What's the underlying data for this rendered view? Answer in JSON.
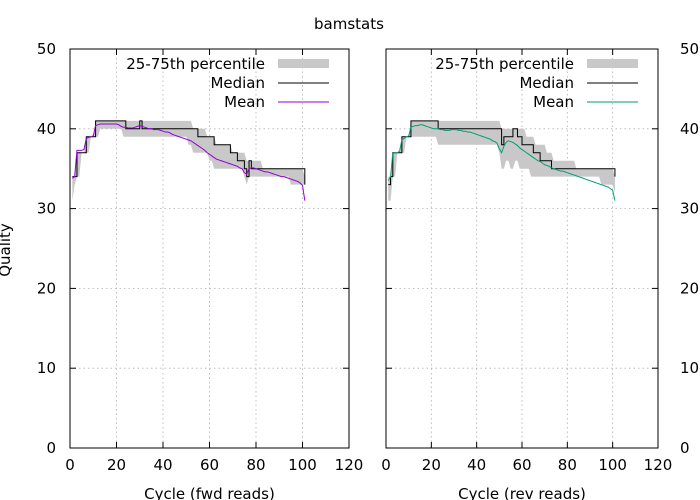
{
  "figure": {
    "title": "bamstats",
    "ylabel": "Quality"
  },
  "colors": {
    "iqr_band": "#c8c8c8",
    "median": "#000000",
    "fwd_mean": "#9400d3",
    "rev_mean": "#009e73",
    "grid": "#b0b0b0",
    "axis": "#000000",
    "text": "#000000"
  },
  "chart_data": [
    {
      "type": "line",
      "panel": "forward",
      "xlabel": "Cycle (fwd reads)",
      "xlim": [
        0,
        120
      ],
      "ylim": [
        0,
        50
      ],
      "xticks": [
        0,
        20,
        40,
        60,
        80,
        100,
        120
      ],
      "yticks": [
        0,
        10,
        20,
        30,
        40,
        50
      ],
      "grid": true,
      "legend": "top-right",
      "legend_entries": [
        "25-75th percentile",
        "Median",
        "Mean"
      ],
      "x": [
        1,
        2,
        3,
        4,
        5,
        6,
        7,
        8,
        9,
        10,
        11,
        12,
        13,
        14,
        15,
        16,
        17,
        18,
        19,
        20,
        21,
        22,
        23,
        24,
        25,
        26,
        27,
        28,
        29,
        30,
        31,
        32,
        33,
        34,
        35,
        36,
        37,
        38,
        39,
        40,
        41,
        42,
        43,
        44,
        45,
        46,
        47,
        48,
        49,
        50,
        51,
        52,
        53,
        54,
        55,
        56,
        57,
        58,
        59,
        60,
        61,
        62,
        63,
        64,
        65,
        66,
        67,
        68,
        69,
        70,
        71,
        72,
        73,
        74,
        75,
        76,
        77,
        78,
        79,
        80,
        81,
        82,
        83,
        84,
        85,
        86,
        87,
        88,
        89,
        90,
        91,
        92,
        93,
        94,
        95,
        96,
        97,
        98,
        99,
        100,
        101
      ],
      "q25": [
        31,
        33,
        34,
        34,
        37,
        37,
        37,
        37,
        39,
        39,
        39,
        39,
        40,
        40,
        40,
        40,
        40,
        40,
        40,
        40,
        40,
        40,
        39,
        39,
        39,
        39,
        39,
        39,
        39,
        39,
        39,
        39,
        39,
        39,
        39,
        39,
        39,
        39,
        39,
        39,
        39,
        39,
        39,
        39,
        39,
        39,
        39,
        39,
        39,
        39,
        38,
        38,
        37,
        37,
        37,
        37,
        37,
        37,
        37,
        36,
        36,
        35,
        35,
        35,
        35,
        35,
        35,
        35,
        35,
        35,
        35,
        35,
        35,
        35,
        34,
        33,
        34,
        34,
        34,
        34,
        34,
        34,
        34,
        34,
        34,
        34,
        34,
        34,
        34,
        34,
        34,
        34,
        34,
        34,
        33,
        33,
        33,
        33,
        33,
        33,
        33
      ],
      "q75": [
        34,
        34,
        37,
        37,
        37,
        37,
        39,
        39,
        39,
        39,
        41,
        41,
        41,
        41,
        41,
        41,
        41,
        41,
        41,
        41,
        41,
        41,
        41,
        41,
        41,
        41,
        41,
        41,
        41,
        41,
        41,
        41,
        41,
        41,
        41,
        41,
        41,
        41,
        41,
        41,
        41,
        41,
        41,
        41,
        41,
        41,
        41,
        41,
        41,
        41,
        41,
        41,
        40,
        40,
        40,
        40,
        40,
        40,
        39,
        39,
        39,
        39,
        38,
        38,
        38,
        38,
        38,
        38,
        38,
        37,
        37,
        37,
        37,
        37,
        37,
        36,
        36,
        36,
        36,
        36,
        36,
        36,
        35,
        35,
        35,
        35,
        35,
        35,
        35,
        35,
        35,
        35,
        35,
        35,
        35,
        35,
        35,
        35,
        35,
        35,
        34
      ],
      "series": [
        {
          "name": "Median",
          "values": [
            34,
            34,
            37,
            37,
            37,
            37,
            39,
            39,
            39,
            39,
            41,
            41,
            41,
            41,
            41,
            41,
            41,
            41,
            41,
            41,
            41,
            41,
            41,
            40,
            40,
            40,
            40,
            40,
            40,
            41,
            40,
            40,
            40,
            40,
            40,
            40,
            40,
            40,
            40,
            40,
            40,
            40,
            40,
            40,
            40,
            40,
            40,
            40,
            40,
            40,
            40,
            40,
            40,
            40,
            39,
            39,
            39,
            39,
            39,
            39,
            39,
            38,
            38,
            38,
            38,
            38,
            38,
            38,
            37,
            37,
            37,
            36,
            36,
            36,
            35,
            34,
            36,
            35,
            35,
            35,
            35,
            35,
            35,
            35,
            35,
            35,
            35,
            35,
            35,
            35,
            35,
            35,
            35,
            35,
            35,
            35,
            35,
            35,
            35,
            35,
            33
          ]
        },
        {
          "name": "Mean",
          "values": [
            33.8,
            34,
            37.3,
            37.3,
            37.3,
            37.4,
            38.8,
            38.9,
            39,
            39.1,
            40.4,
            40.5,
            40.6,
            40.6,
            40.6,
            40.6,
            40.6,
            40.6,
            40.6,
            40.6,
            40.5,
            40.3,
            40.2,
            40.2,
            40.1,
            40.1,
            40.1,
            40.2,
            40.3,
            40.4,
            40.3,
            40.2,
            40.1,
            40,
            40,
            39.9,
            39.9,
            39.9,
            39.8,
            39.7,
            39.6,
            39.6,
            39.5,
            39.3,
            39.2,
            39.1,
            39,
            38.9,
            38.8,
            38.7,
            38.6,
            38.5,
            38.3,
            38.1,
            37.9,
            37.7,
            37.5,
            37.3,
            37,
            36.8,
            36.6,
            36.4,
            36.2,
            36.1,
            36,
            35.9,
            35.8,
            35.7,
            35.6,
            35.5,
            35.4,
            35.3,
            35.1,
            35,
            34.5,
            34.3,
            35,
            35.1,
            35.1,
            35,
            34.9,
            34.8,
            34.7,
            34.6,
            34.6,
            34.5,
            34.4,
            34.3,
            34.2,
            34.1,
            34,
            34,
            33.9,
            33.8,
            33.7,
            33.6,
            33.5,
            33.4,
            33.2,
            32.9,
            31
          ]
        }
      ]
    },
    {
      "type": "line",
      "panel": "reverse",
      "xlabel": "Cycle (rev reads)",
      "xlim": [
        0,
        120
      ],
      "ylim": [
        0,
        50
      ],
      "xticks": [
        0,
        20,
        40,
        60,
        80,
        100,
        120
      ],
      "yticks": [
        0,
        10,
        20,
        30,
        40,
        50
      ],
      "grid": true,
      "legend": "top-right",
      "legend_entries": [
        "25-75th percentile",
        "Median",
        "Mean"
      ],
      "x": [
        1,
        2,
        3,
        4,
        5,
        6,
        7,
        8,
        9,
        10,
        11,
        12,
        13,
        14,
        15,
        16,
        17,
        18,
        19,
        20,
        21,
        22,
        23,
        24,
        25,
        26,
        27,
        28,
        29,
        30,
        31,
        32,
        33,
        34,
        35,
        36,
        37,
        38,
        39,
        40,
        41,
        42,
        43,
        44,
        45,
        46,
        47,
        48,
        49,
        50,
        51,
        52,
        53,
        54,
        55,
        56,
        57,
        58,
        59,
        60,
        61,
        62,
        63,
        64,
        65,
        66,
        67,
        68,
        69,
        70,
        71,
        72,
        73,
        74,
        75,
        76,
        77,
        78,
        79,
        80,
        81,
        82,
        83,
        84,
        85,
        86,
        87,
        88,
        89,
        90,
        91,
        92,
        93,
        94,
        95,
        96,
        97,
        98,
        99,
        100,
        101
      ],
      "q25": [
        31,
        31,
        34,
        34,
        37,
        37,
        37,
        37,
        39,
        39,
        39,
        39,
        39,
        39,
        39,
        39,
        39,
        39,
        39,
        39,
        39,
        39,
        38,
        38,
        38,
        38,
        38,
        38,
        38,
        38,
        38,
        38,
        38,
        38,
        38,
        38,
        38,
        38,
        38,
        38,
        38,
        38,
        38,
        38,
        38,
        38,
        38,
        38,
        38,
        37,
        35,
        35,
        36,
        36,
        35,
        35,
        36,
        36,
        35,
        35,
        35,
        35,
        35,
        34,
        34,
        34,
        34,
        34,
        34,
        34,
        34,
        34,
        34,
        34,
        34,
        34,
        34,
        34,
        34,
        34,
        34,
        34,
        34,
        34,
        34,
        34,
        34,
        34,
        34,
        34,
        34,
        34,
        34,
        34,
        33,
        33,
        33,
        33,
        33,
        33,
        32
      ],
      "q75": [
        34,
        34,
        37,
        37,
        37,
        37,
        39,
        39,
        39,
        39,
        41,
        41,
        41,
        41,
        41,
        41,
        41,
        41,
        41,
        41,
        41,
        41,
        41,
        41,
        41,
        41,
        41,
        41,
        41,
        41,
        41,
        41,
        41,
        41,
        41,
        41,
        41,
        41,
        41,
        41,
        41,
        41,
        41,
        41,
        41,
        41,
        41,
        41,
        41,
        41,
        40,
        40,
        40,
        40,
        40,
        40,
        40,
        40,
        40,
        40,
        40,
        39,
        39,
        39,
        39,
        38,
        38,
        38,
        38,
        38,
        37,
        37,
        37,
        36,
        36,
        36,
        36,
        36,
        36,
        36,
        36,
        36,
        36,
        35,
        35,
        35,
        35,
        35,
        35,
        35,
        35,
        35,
        35,
        35,
        35,
        35,
        35,
        35,
        35,
        35,
        34
      ],
      "series": [
        {
          "name": "Median",
          "values": [
            33,
            34,
            37,
            37,
            37,
            37,
            39,
            39,
            39,
            39,
            41,
            41,
            41,
            41,
            41,
            41,
            41,
            41,
            41,
            41,
            41,
            41,
            40,
            40,
            40,
            40,
            40,
            40,
            40,
            40,
            40,
            40,
            40,
            40,
            40,
            40,
            40,
            40,
            40,
            40,
            40,
            40,
            40,
            40,
            40,
            40,
            40,
            40,
            40,
            40,
            38,
            39,
            39,
            39,
            39,
            40,
            40,
            39,
            39,
            38,
            38,
            38,
            38,
            38,
            37,
            37,
            37,
            36,
            36,
            36,
            36,
            36,
            35,
            35,
            35,
            35,
            35,
            35,
            35,
            35,
            35,
            35,
            35,
            35,
            35,
            35,
            35,
            35,
            35,
            35,
            35,
            35,
            35,
            35,
            35,
            35,
            35,
            35,
            35,
            35,
            34
          ]
        },
        {
          "name": "Mean",
          "values": [
            33.5,
            34,
            36.9,
            37,
            37,
            37.2,
            38.6,
            38.8,
            39,
            39.1,
            40.2,
            40.3,
            40.4,
            40.4,
            40.5,
            40.5,
            40.4,
            40.3,
            40.2,
            40.1,
            40,
            40,
            40,
            39.9,
            39.9,
            39.8,
            39.8,
            39.8,
            39.9,
            39.9,
            39.9,
            39.8,
            39.8,
            39.7,
            39.7,
            39.6,
            39.6,
            39.5,
            39.4,
            39.3,
            39.2,
            39.1,
            39,
            38.9,
            38.8,
            38.7,
            38.5,
            38.4,
            38.2,
            37.5,
            37,
            37.8,
            38.3,
            38.5,
            38.4,
            38.3,
            38.1,
            37.9,
            37.6,
            37.4,
            37.2,
            37,
            36.8,
            36.6,
            36.4,
            36.2,
            36,
            35.9,
            35.7,
            35.5,
            35.4,
            35.3,
            35.1,
            35,
            34.9,
            34.8,
            34.7,
            34.7,
            34.6,
            34.5,
            34.4,
            34.3,
            34.2,
            34.1,
            34,
            33.9,
            33.8,
            33.7,
            33.6,
            33.5,
            33.4,
            33.3,
            33.2,
            33.1,
            33,
            32.9,
            32.8,
            32.7,
            32.5,
            32.3,
            31
          ]
        }
      ]
    }
  ]
}
